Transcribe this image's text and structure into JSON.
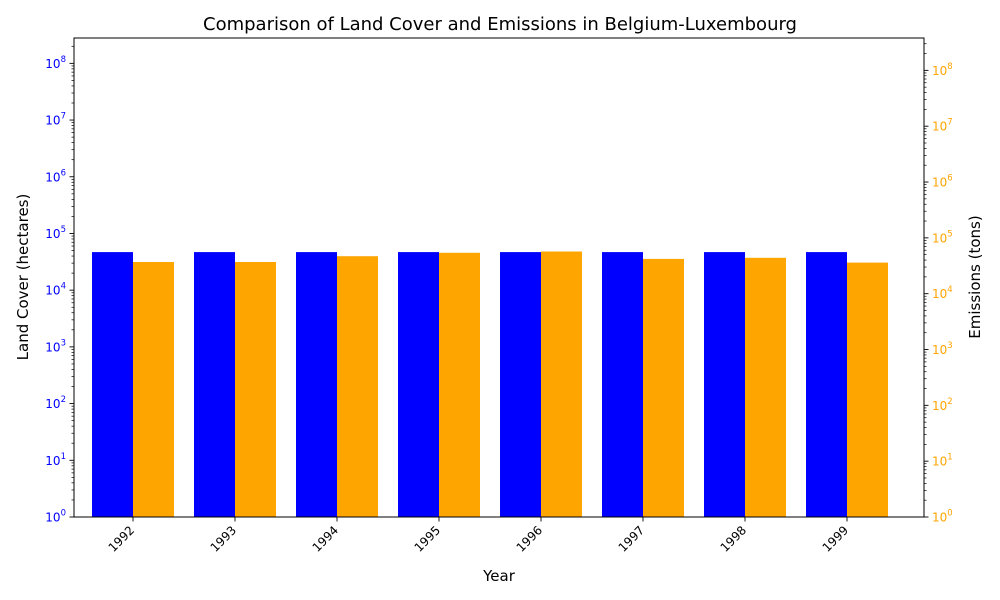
{
  "chart_data": {
    "type": "bar",
    "title": "Comparison of Land Cover and Emissions in Belgium-Luxembourg",
    "xlabel": "Year",
    "ylabel_left": "Land Cover (hectares)",
    "ylabel_right": "Emissions (tons)",
    "yscale": "log",
    "ylim_left": [
      1,
      280000000
    ],
    "ylim_right": [
      1,
      380000000
    ],
    "categories": [
      "1992",
      "1993",
      "1994",
      "1995",
      "1996",
      "1997",
      "1998",
      "1999"
    ],
    "series": [
      {
        "name": "Land Cover (hectares)",
        "axis": "left",
        "color": "#0000ff",
        "values": [
          47000,
          47000,
          47000,
          47000,
          47000,
          47000,
          47000,
          47000
        ]
      },
      {
        "name": "Emissions (tons)",
        "axis": "right",
        "color": "#ffa500",
        "values": [
          37000,
          37000,
          47000,
          54000,
          57000,
          42000,
          44000,
          36000
        ]
      }
    ],
    "left_ticks": [
      1,
      10,
      100,
      1000,
      10000,
      100000,
      1000000,
      10000000,
      100000000
    ],
    "right_ticks": [
      1,
      10,
      100,
      1000,
      10000,
      100000,
      1000000,
      10000000,
      100000000
    ],
    "grid": false,
    "legend": "none",
    "colors": {
      "left_axis": "#0000ff",
      "right_axis": "#ffa500"
    }
  }
}
